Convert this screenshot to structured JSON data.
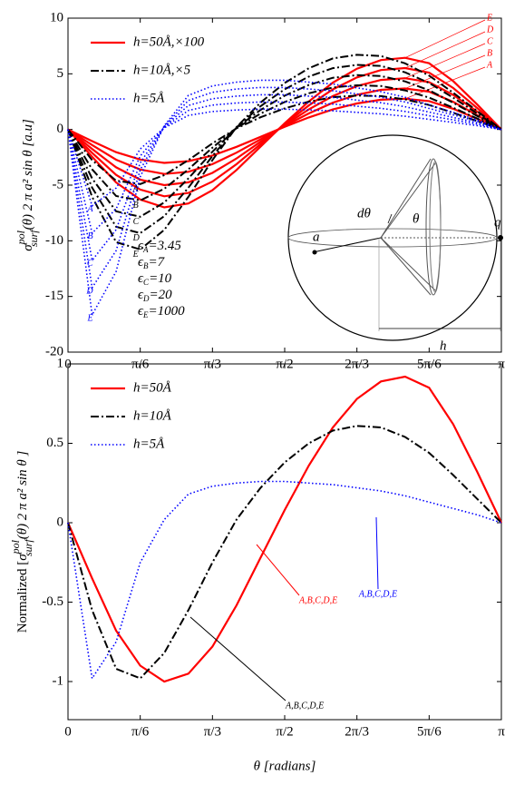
{
  "chart_data": [
    {
      "type": "line",
      "x": [
        0,
        0.1745,
        0.349,
        0.5236,
        0.698,
        0.8727,
        1.0472,
        1.2217,
        1.3963,
        1.5708,
        1.7453,
        1.9199,
        2.0944,
        2.2689,
        2.4435,
        2.618,
        2.7925,
        2.967,
        3.1416
      ],
      "xlim": [
        0,
        3.1416
      ],
      "xticks": [
        0,
        {
          "value": 0.5236,
          "label": "π/6"
        },
        {
          "value": 1.0472,
          "label": "π/3"
        },
        {
          "value": 1.5708,
          "label": "π/2"
        },
        {
          "value": 2.0944,
          "label": "2π/3"
        },
        {
          "value": 2.618,
          "label": "5π/6"
        },
        {
          "value": 3.1416,
          "label": "π"
        }
      ],
      "ylim": [
        -20,
        10
      ],
      "yticks": [
        10,
        5,
        0,
        -5,
        -10,
        -15,
        -20
      ],
      "ylabel": {
        "symbol": "σ",
        "sup": "pol",
        "sub": "surf",
        "rest": "(θ) 2 π a² sin θ [a.u]"
      },
      "legend": "upper left",
      "series": [
        {
          "name": "h=50Å,×100",
          "color": "#ff0000",
          "style": "solid",
          "curves": [
            {
              "label": "A",
              "values": [
                0,
                -1.05,
                -2.04,
                -2.7,
                -3,
                -2.85,
                -2.34,
                -1.56,
                -0.66,
                0.24,
                1.08,
                1.8,
                2.34,
                2.67,
                2.76,
                2.55,
                1.86,
                0.96,
                0
              ]
            },
            {
              "label": "B",
              "values": [
                0,
                -1.4,
                -2.72,
                -3.6,
                -4,
                -3.8,
                -3.12,
                -2.08,
                -0.88,
                0.32,
                1.44,
                2.4,
                3.12,
                3.56,
                3.68,
                3.4,
                2.48,
                1.28,
                0
              ]
            },
            {
              "label": "C",
              "values": [
                0,
                -1.75,
                -3.4,
                -4.5,
                -5,
                -4.75,
                -3.9,
                -2.6,
                -1.1,
                0.4,
                1.8,
                3,
                3.9,
                4.45,
                4.6,
                4.25,
                3.1,
                1.6,
                0
              ]
            },
            {
              "label": "D",
              "values": [
                0,
                -2.1,
                -4.08,
                -5.4,
                -6,
                -5.7,
                -4.68,
                -3.12,
                -1.32,
                0.48,
                2.16,
                3.6,
                4.68,
                5.34,
                5.52,
                5.1,
                3.72,
                1.92,
                0
              ]
            },
            {
              "label": "E",
              "values": [
                0,
                -2.45,
                -4.76,
                -6.3,
                -7,
                -6.65,
                -5.46,
                -3.64,
                -1.54,
                0.56,
                2.52,
                4.2,
                5.46,
                6.23,
                6.44,
                5.95,
                4.34,
                2.24,
                0
              ]
            }
          ]
        },
        {
          "name": "h=10Å,×5",
          "color": "#000000",
          "style": "dashdot",
          "curves": [
            {
              "label": "A",
              "values": [
                0,
                -2.75,
                -4.6,
                -4.9,
                -4.1,
                -2.75,
                -1.25,
                0.1,
                1.1,
                1.9,
                2.5,
                2.9,
                3.05,
                3,
                2.7,
                2.2,
                1.5,
                0.75,
                0
              ]
            },
            {
              "label": "B",
              "values": [
                0,
                -3.58,
                -5.98,
                -6.37,
                -5.33,
                -3.58,
                -1.63,
                0.13,
                1.43,
                2.47,
                3.25,
                3.77,
                3.97,
                3.9,
                3.51,
                2.86,
                1.95,
                0.98,
                0
              ]
            },
            {
              "label": "C",
              "values": [
                0,
                -4.4,
                -7.36,
                -7.84,
                -6.56,
                -4.4,
                -2,
                0.16,
                1.76,
                3.04,
                4,
                4.64,
                4.88,
                4.8,
                4.32,
                3.52,
                2.4,
                1.2,
                0
              ]
            },
            {
              "label": "D",
              "values": [
                0,
                -5.23,
                -8.74,
                -9.31,
                -7.79,
                -5.23,
                -2.38,
                0.19,
                2.09,
                3.61,
                4.75,
                5.51,
                5.8,
                5.7,
                5.13,
                4.18,
                2.85,
                1.43,
                0
              ]
            },
            {
              "label": "E",
              "values": [
                0,
                -6.05,
                -10.12,
                -10.78,
                -9.02,
                -6.05,
                -2.75,
                0.22,
                2.42,
                4.18,
                5.5,
                6.38,
                6.71,
                6.6,
                5.94,
                4.84,
                3.3,
                1.65,
                0
              ]
            }
          ]
        },
        {
          "name": "h=5Å",
          "color": "#0000ff",
          "style": "dotted",
          "curves": [
            {
              "label": "A",
              "values": [
                0,
                -6.86,
                -5.25,
                -1.75,
                0.14,
                1.26,
                1.61,
                1.75,
                1.82,
                1.82,
                1.75,
                1.68,
                1.54,
                1.4,
                1.19,
                0.91,
                0.63,
                0.35,
                0
              ]
            },
            {
              "label": "B",
              "values": [
                0,
                -9.31,
                -7.13,
                -2.38,
                0.19,
                1.71,
                2.19,
                2.38,
                2.47,
                2.47,
                2.38,
                2.28,
                2.09,
                1.9,
                1.62,
                1.24,
                0.86,
                0.48,
                0
              ]
            },
            {
              "label": "C",
              "values": [
                0,
                -11.76,
                -9,
                -3,
                0.24,
                2.16,
                2.76,
                3,
                3.12,
                3.12,
                3,
                2.88,
                2.64,
                2.4,
                2.04,
                1.56,
                1.08,
                0.6,
                0
              ]
            },
            {
              "label": "D",
              "values": [
                0,
                -14.21,
                -10.88,
                -3.63,
                0.29,
                2.61,
                3.34,
                3.63,
                3.77,
                3.77,
                3.63,
                3.48,
                3.19,
                2.9,
                2.47,
                1.89,
                1.31,
                0.73,
                0
              ]
            },
            {
              "label": "E",
              "values": [
                0,
                -16.66,
                -12.75,
                -4.25,
                0.34,
                3.06,
                3.91,
                4.25,
                4.42,
                4.42,
                4.25,
                4.08,
                3.74,
                3.4,
                2.89,
                2.21,
                1.53,
                0.85,
                0
              ]
            }
          ]
        }
      ],
      "epsilons": [
        {
          "symbol": "ϵ",
          "sub": "A",
          "rest": "=3.45"
        },
        {
          "symbol": "ϵ",
          "sub": "B",
          "rest": "=7"
        },
        {
          "symbol": "ϵ",
          "sub": "C",
          "rest": "=10"
        },
        {
          "symbol": "ϵ",
          "sub": "D",
          "rest": "=20"
        },
        {
          "symbol": "ϵ",
          "sub": "E",
          "rest": "=1000"
        }
      ],
      "inset_labels": [
        "dθ",
        "θ",
        "a",
        "q",
        "h"
      ]
    },
    {
      "type": "line",
      "x": [
        0,
        0.1745,
        0.349,
        0.5236,
        0.698,
        0.8727,
        1.0472,
        1.2217,
        1.3963,
        1.5708,
        1.7453,
        1.9199,
        2.0944,
        2.2689,
        2.4435,
        2.618,
        2.7925,
        2.967,
        3.1416
      ],
      "xlim": [
        0,
        3.1416
      ],
      "xticks": [
        0,
        {
          "value": 0.5236,
          "label": "π/6"
        },
        {
          "value": 1.0472,
          "label": "π/3"
        },
        {
          "value": 1.5708,
          "label": "π/2"
        },
        {
          "value": 2.0944,
          "label": "2π/3"
        },
        {
          "value": 2.618,
          "label": "5π/6"
        },
        {
          "value": 3.1416,
          "label": "π"
        }
      ],
      "ylim": [
        -1.24,
        1
      ],
      "yticks": [
        1,
        0.5,
        0,
        -0.5,
        -1
      ],
      "ylabel": {
        "prefix": "Normalized [",
        "symbol": "σ",
        "sup": "pol",
        "sub": "surf",
        "rest": "(θ) 2 π a² sin θ ]"
      },
      "xlabel": "θ [radians]",
      "legend": "upper left",
      "series": [
        {
          "name": "h=50Å",
          "color": "#ff0000",
          "style": "solid",
          "annotation": "A,B,C,D,E",
          "values": [
            0,
            -0.35,
            -0.68,
            -0.9,
            -1,
            -0.95,
            -0.78,
            -0.52,
            -0.22,
            0.08,
            0.36,
            0.6,
            0.78,
            0.89,
            0.92,
            0.85,
            0.62,
            0.32,
            0
          ]
        },
        {
          "name": "h=10Å",
          "color": "#000000",
          "style": "dashdot",
          "annotation": "A,B,C,D,E",
          "values": [
            0,
            -0.55,
            -0.92,
            -0.98,
            -0.82,
            -0.55,
            -0.25,
            0.02,
            0.22,
            0.38,
            0.5,
            0.58,
            0.61,
            0.6,
            0.54,
            0.44,
            0.3,
            0.15,
            0
          ]
        },
        {
          "name": "h=5Å",
          "color": "#0000ff",
          "style": "dotted",
          "annotation": "A,B,C,D,E",
          "values": [
            0,
            -0.98,
            -0.75,
            -0.25,
            0.02,
            0.18,
            0.23,
            0.25,
            0.26,
            0.26,
            0.25,
            0.24,
            0.22,
            0.2,
            0.17,
            0.13,
            0.09,
            0.05,
            0
          ]
        }
      ]
    }
  ]
}
